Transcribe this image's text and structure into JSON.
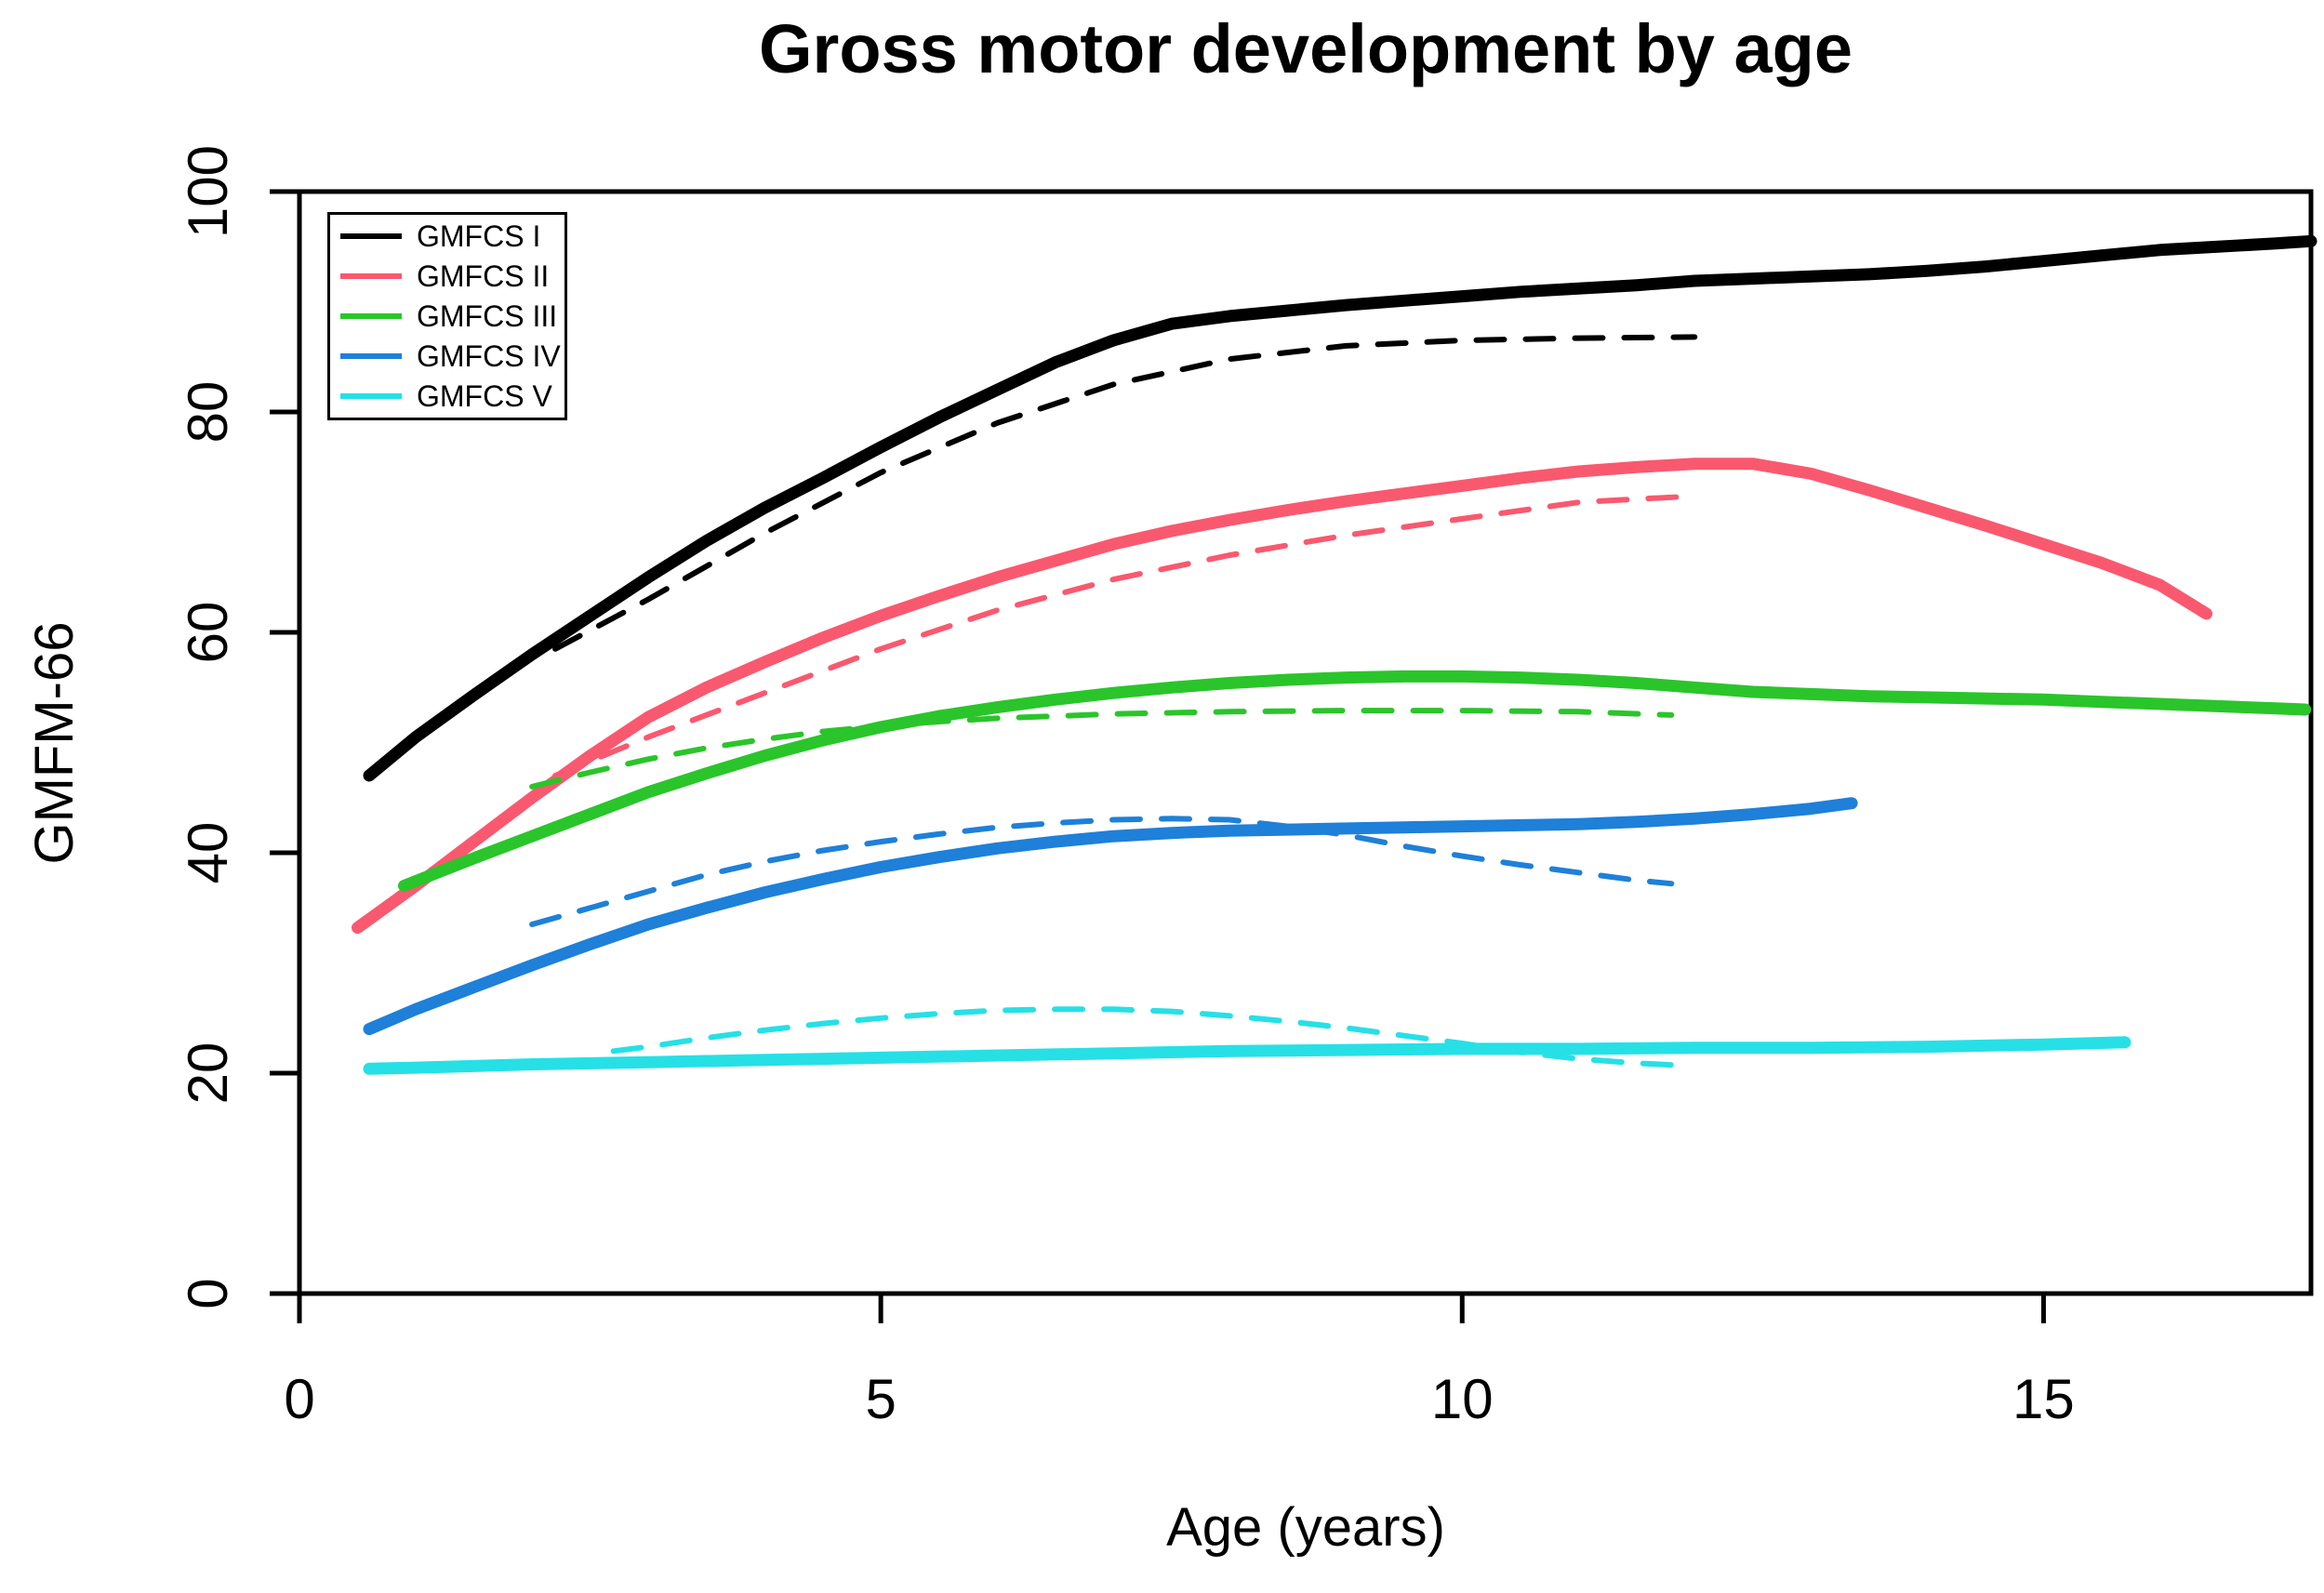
{
  "chart_data": {
    "type": "line",
    "title": "Gross motor development by age",
    "xlabel": "Age (years)",
    "ylabel": "GMFM-66",
    "xlim": [
      0,
      17.3
    ],
    "ylim": [
      0,
      100
    ],
    "xticks": [
      0,
      5,
      10,
      15
    ],
    "yticks": [
      0,
      20,
      40,
      60,
      80,
      100
    ],
    "grid": false,
    "legend": {
      "position": "top-left",
      "entries": [
        {
          "label": "GMFCS I",
          "color": "#000000"
        },
        {
          "label": "GMFCS II",
          "color": "#F9596F"
        },
        {
          "label": "GMFCS III",
          "color": "#2AC52A"
        },
        {
          "label": "GMFCS IV",
          "color": "#1E80D8"
        },
        {
          "label": "GMFCS V",
          "color": "#26E0E6"
        }
      ]
    },
    "series": [
      {
        "name": "GMFCS I solid",
        "group": "GMFCS I",
        "style": "solid",
        "color": "#000000",
        "points": [
          [
            0.6,
            47
          ],
          [
            1,
            50.5
          ],
          [
            1.5,
            54.3
          ],
          [
            2,
            58
          ],
          [
            2.5,
            61.5
          ],
          [
            3,
            65
          ],
          [
            3.5,
            68.3
          ],
          [
            4,
            71.3
          ],
          [
            4.5,
            74
          ],
          [
            5,
            76.8
          ],
          [
            5.5,
            79.5
          ],
          [
            6,
            82
          ],
          [
            6.5,
            84.5
          ],
          [
            7,
            86.5
          ],
          [
            7.5,
            88
          ],
          [
            8,
            88.7
          ],
          [
            8.5,
            89.2
          ],
          [
            9,
            89.7
          ],
          [
            9.5,
            90.1
          ],
          [
            10,
            90.5
          ],
          [
            10.5,
            90.9
          ],
          [
            11,
            91.2
          ],
          [
            11.5,
            91.5
          ],
          [
            12,
            91.9
          ],
          [
            12.5,
            92.1
          ],
          [
            13,
            92.3
          ],
          [
            13.5,
            92.5
          ],
          [
            14,
            92.8
          ],
          [
            14.5,
            93.2
          ],
          [
            15,
            93.7
          ],
          [
            15.5,
            94.2
          ],
          [
            16,
            94.7
          ],
          [
            16.5,
            95
          ],
          [
            17,
            95.3
          ],
          [
            17.3,
            95.5
          ]
        ]
      },
      {
        "name": "GMFCS I dashed",
        "group": "GMFCS I",
        "style": "dashed",
        "color": "#000000",
        "points": [
          [
            2.2,
            58.5
          ],
          [
            3,
            63
          ],
          [
            4,
            69
          ],
          [
            5,
            74.5
          ],
          [
            6,
            79
          ],
          [
            7,
            82.5
          ],
          [
            8,
            84.8
          ],
          [
            9,
            86
          ],
          [
            10,
            86.5
          ],
          [
            11,
            86.7
          ],
          [
            12,
            86.8
          ]
        ]
      },
      {
        "name": "GMFCS II solid",
        "group": "GMFCS II",
        "style": "solid",
        "color": "#F9596F",
        "points": [
          [
            0.5,
            33.2
          ],
          [
            1,
            37
          ],
          [
            1.5,
            41
          ],
          [
            2,
            45
          ],
          [
            2.5,
            48.8
          ],
          [
            3,
            52.3
          ],
          [
            3.5,
            55
          ],
          [
            4,
            57.3
          ],
          [
            4.5,
            59.5
          ],
          [
            5,
            61.5
          ],
          [
            5.5,
            63.3
          ],
          [
            6,
            65
          ],
          [
            6.5,
            66.5
          ],
          [
            7,
            68
          ],
          [
            7.5,
            69.2
          ],
          [
            8,
            70.2
          ],
          [
            8.5,
            71.1
          ],
          [
            9,
            71.9
          ],
          [
            9.5,
            72.6
          ],
          [
            10,
            73.3
          ],
          [
            10.5,
            74
          ],
          [
            11,
            74.6
          ],
          [
            11.5,
            75
          ],
          [
            12,
            75.3
          ],
          [
            12.5,
            75.3
          ],
          [
            13,
            74.4
          ],
          [
            13.5,
            72.9
          ],
          [
            14,
            71.3
          ],
          [
            14.5,
            69.7
          ],
          [
            15,
            68
          ],
          [
            15.5,
            66.3
          ],
          [
            16,
            64.3
          ],
          [
            16.4,
            61.7
          ]
        ]
      },
      {
        "name": "GMFCS II dashed",
        "group": "GMFCS II",
        "style": "dashed",
        "color": "#F9596F",
        "points": [
          [
            2.2,
            47
          ],
          [
            3,
            50.5
          ],
          [
            4,
            54.5
          ],
          [
            5,
            58.5
          ],
          [
            6,
            62
          ],
          [
            7,
            64.8
          ],
          [
            8,
            67
          ],
          [
            9,
            68.8
          ],
          [
            10,
            70.3
          ],
          [
            11,
            71.8
          ],
          [
            11.5,
            72.1
          ],
          [
            11.9,
            72.3
          ]
        ]
      },
      {
        "name": "GMFCS III solid",
        "group": "GMFCS III",
        "style": "solid",
        "color": "#2AC52A",
        "points": [
          [
            0.9,
            37
          ],
          [
            1.5,
            39.5
          ],
          [
            2,
            41.5
          ],
          [
            2.5,
            43.5
          ],
          [
            3,
            45.5
          ],
          [
            3.5,
            47.2
          ],
          [
            4,
            48.8
          ],
          [
            4.5,
            50.2
          ],
          [
            5,
            51.4
          ],
          [
            5.5,
            52.4
          ],
          [
            6,
            53.2
          ],
          [
            6.5,
            53.9
          ],
          [
            7,
            54.5
          ],
          [
            7.5,
            55
          ],
          [
            8,
            55.4
          ],
          [
            8.5,
            55.7
          ],
          [
            9,
            55.9
          ],
          [
            9.5,
            56
          ],
          [
            10,
            56
          ],
          [
            10.5,
            55.9
          ],
          [
            11,
            55.7
          ],
          [
            11.5,
            55.4
          ],
          [
            12,
            55
          ],
          [
            12.5,
            54.6
          ],
          [
            13,
            54.4
          ],
          [
            13.5,
            54.2
          ],
          [
            14,
            54.1
          ],
          [
            14.5,
            54
          ],
          [
            15,
            53.9
          ],
          [
            15.5,
            53.7
          ],
          [
            16,
            53.5
          ],
          [
            16.5,
            53.3
          ],
          [
            17,
            53.1
          ],
          [
            17.25,
            53
          ]
        ]
      },
      {
        "name": "GMFCS III dashed",
        "group": "GMFCS III",
        "style": "dashed",
        "color": "#2AC52A",
        "points": [
          [
            2,
            46
          ],
          [
            2.5,
            47.3
          ],
          [
            3,
            48.5
          ],
          [
            3.5,
            49.5
          ],
          [
            4,
            50.3
          ],
          [
            4.5,
            51
          ],
          [
            5,
            51.5
          ],
          [
            5.5,
            51.9
          ],
          [
            6,
            52.2
          ],
          [
            6.5,
            52.4
          ],
          [
            7,
            52.6
          ],
          [
            8,
            52.8
          ],
          [
            9,
            52.9
          ],
          [
            10,
            52.9
          ],
          [
            11,
            52.8
          ],
          [
            11.8,
            52.5
          ]
        ]
      },
      {
        "name": "GMFCS IV solid",
        "group": "GMFCS IV",
        "style": "solid",
        "color": "#1E80D8",
        "points": [
          [
            0.6,
            24
          ],
          [
            1,
            25.8
          ],
          [
            1.5,
            27.8
          ],
          [
            2,
            29.8
          ],
          [
            2.5,
            31.7
          ],
          [
            3,
            33.5
          ],
          [
            3.5,
            35
          ],
          [
            4,
            36.4
          ],
          [
            4.5,
            37.6
          ],
          [
            5,
            38.7
          ],
          [
            5.5,
            39.6
          ],
          [
            6,
            40.4
          ],
          [
            6.5,
            41
          ],
          [
            7,
            41.5
          ],
          [
            7.5,
            41.8
          ],
          [
            8,
            42
          ],
          [
            8.5,
            42.1
          ],
          [
            9,
            42.2
          ],
          [
            9.5,
            42.3
          ],
          [
            10,
            42.4
          ],
          [
            10.5,
            42.5
          ],
          [
            11,
            42.6
          ],
          [
            11.5,
            42.8
          ],
          [
            12,
            43.1
          ],
          [
            12.5,
            43.5
          ],
          [
            13,
            44
          ],
          [
            13.35,
            44.5
          ]
        ]
      },
      {
        "name": "GMFCS IV dashed",
        "group": "GMFCS IV",
        "style": "dashed",
        "color": "#1E80D8",
        "points": [
          [
            2,
            33.5
          ],
          [
            2.5,
            35
          ],
          [
            3,
            36.5
          ],
          [
            3.5,
            38
          ],
          [
            4,
            39.2
          ],
          [
            4.5,
            40.2
          ],
          [
            5,
            41
          ],
          [
            5.5,
            41.7
          ],
          [
            6,
            42.3
          ],
          [
            6.5,
            42.7
          ],
          [
            7,
            43
          ],
          [
            7.5,
            43.1
          ],
          [
            8,
            43
          ],
          [
            8.5,
            42.4
          ],
          [
            9,
            41.6
          ],
          [
            9.5,
            40.6
          ],
          [
            10,
            39.7
          ],
          [
            10.5,
            38.9
          ],
          [
            11,
            38.2
          ],
          [
            11.5,
            37.5
          ],
          [
            11.8,
            37.2
          ]
        ]
      },
      {
        "name": "GMFCS V solid",
        "group": "GMFCS V",
        "style": "solid",
        "color": "#26E0E6",
        "points": [
          [
            0.6,
            20.4
          ],
          [
            1,
            20.5
          ],
          [
            2,
            20.8
          ],
          [
            3,
            21
          ],
          [
            4,
            21.2
          ],
          [
            5,
            21.4
          ],
          [
            6,
            21.6
          ],
          [
            7,
            21.8
          ],
          [
            8,
            22
          ],
          [
            9,
            22.1
          ],
          [
            10,
            22.2
          ],
          [
            11,
            22.2
          ],
          [
            12,
            22.3
          ],
          [
            13,
            22.3
          ],
          [
            14,
            22.4
          ],
          [
            15,
            22.6
          ],
          [
            15.7,
            22.8
          ]
        ]
      },
      {
        "name": "GMFCS V dashed",
        "group": "GMFCS V",
        "style": "dashed",
        "color": "#26E0E6",
        "points": [
          [
            2.7,
            22
          ],
          [
            3,
            22.4
          ],
          [
            3.5,
            23.2
          ],
          [
            4,
            23.9
          ],
          [
            4.5,
            24.5
          ],
          [
            5,
            25
          ],
          [
            5.5,
            25.4
          ],
          [
            6,
            25.7
          ],
          [
            6.5,
            25.8
          ],
          [
            7,
            25.8
          ],
          [
            7.5,
            25.6
          ],
          [
            8,
            25.2
          ],
          [
            8.5,
            24.7
          ],
          [
            9,
            24.1
          ],
          [
            9.5,
            23.4
          ],
          [
            10,
            22.7
          ],
          [
            10.5,
            21.9
          ],
          [
            11,
            21.3
          ],
          [
            11.5,
            20.9
          ],
          [
            11.9,
            20.7
          ]
        ]
      }
    ]
  }
}
